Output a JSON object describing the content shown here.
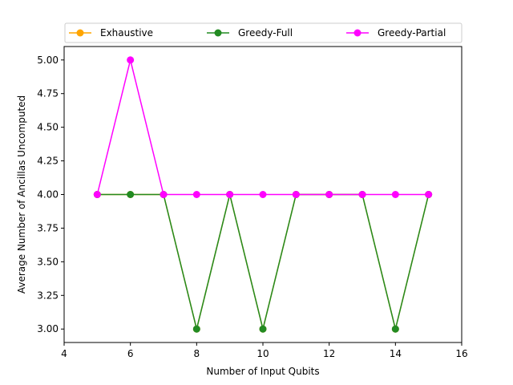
{
  "chart_data": {
    "type": "line",
    "title": "",
    "xlabel": "Number of Input Qubits",
    "ylabel": "Average Number of Ancillas Uncomputed",
    "xlim": [
      4,
      16
    ],
    "ylim": [
      2.9,
      5.1
    ],
    "xticks": [
      4,
      6,
      8,
      10,
      12,
      14,
      16
    ],
    "yticks": [
      3.0,
      3.25,
      3.5,
      3.75,
      4.0,
      4.25,
      4.5,
      4.75,
      5.0
    ],
    "ytick_labels": [
      "3.00",
      "3.25",
      "3.50",
      "3.75",
      "4.00",
      "4.25",
      "4.50",
      "4.75",
      "5.00"
    ],
    "grid": false,
    "legend_position": "top",
    "x": [
      5,
      6,
      7,
      8,
      9,
      10,
      11,
      12,
      13,
      14,
      15
    ],
    "series": [
      {
        "name": "Exhaustive",
        "color": "#ffa500",
        "values": [
          4,
          4,
          4,
          3,
          4,
          3,
          4,
          4,
          4,
          3,
          4
        ]
      },
      {
        "name": "Greedy-Full",
        "color": "#228b22",
        "values": [
          4,
          4,
          4,
          3,
          4,
          3,
          4,
          4,
          4,
          3,
          4
        ]
      },
      {
        "name": "Greedy-Partial",
        "color": "#ff00ff",
        "values": [
          4,
          5,
          4,
          4,
          4,
          4,
          4,
          4,
          4,
          4,
          4
        ]
      }
    ]
  }
}
